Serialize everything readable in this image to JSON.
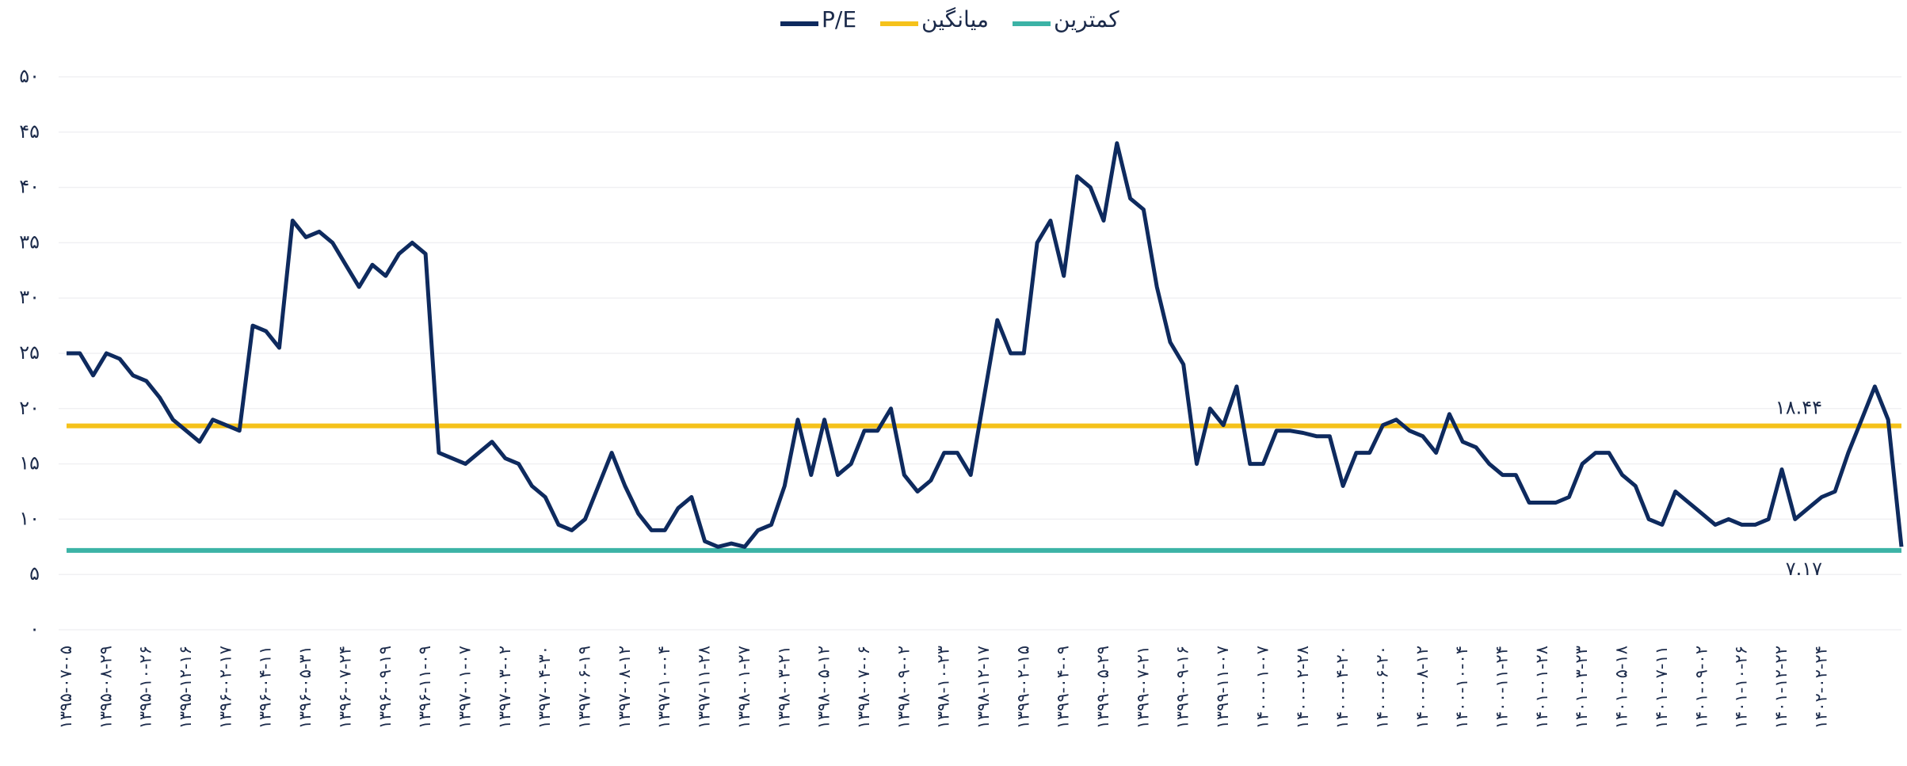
{
  "chart_data": {
    "type": "line",
    "series": [
      {
        "name": "P/E",
        "color": "#0e2a5e",
        "values": [
          25,
          25,
          23,
          25,
          24.5,
          23,
          22.5,
          21,
          19,
          18,
          17,
          19,
          18.5,
          18,
          27.5,
          27,
          25.5,
          37,
          35.5,
          36,
          35,
          33,
          31,
          33,
          32,
          34,
          35,
          34,
          16,
          15.5,
          15,
          16,
          17,
          15.5,
          15,
          13,
          12,
          9.5,
          9,
          10,
          13,
          16,
          13,
          10.5,
          9,
          9,
          11,
          12,
          8,
          7.5,
          7.8,
          7.5,
          9,
          9.5,
          13,
          19,
          14,
          19,
          14,
          15,
          18,
          18,
          20,
          14,
          12.5,
          13.5,
          16,
          16,
          14,
          21,
          28,
          25,
          25,
          35,
          37,
          32,
          41,
          40,
          37,
          44,
          39,
          38,
          31,
          26,
          24,
          15,
          20,
          18.5,
          22,
          15,
          15,
          18,
          18,
          17.8,
          17.5,
          17.5,
          13,
          16,
          16,
          18.5,
          19,
          18,
          17.5,
          16,
          19.5,
          17,
          16.5,
          15,
          14,
          14,
          11.5,
          11.5,
          11.5,
          12,
          15,
          16,
          16,
          14,
          13,
          10,
          9.5,
          12.5,
          11.5,
          10.5,
          9.5,
          10,
          9.5,
          9.5,
          10,
          14.5,
          10,
          11,
          12,
          12.5,
          16,
          19,
          22,
          19,
          7.5
        ]
      }
    ],
    "reference_lines": [
      {
        "name": "میانگین",
        "value": 18.44,
        "value_label": "۱۸.۴۴",
        "color": "#f5c21b"
      },
      {
        "name": "کمترین",
        "value": 7.17,
        "value_label": "۷.۱۷",
        "color": "#3cb3a6"
      }
    ],
    "categories": [
      "۱۳۹۵-۰۷-۰۵",
      null,
      null,
      "۱۳۹۵-۰۸-۲۹",
      null,
      null,
      "۱۳۹۵-۱۰-۲۶",
      null,
      null,
      "۱۳۹۵-۱۲-۱۶",
      null,
      null,
      "۱۳۹۶-۰۲-۱۷",
      null,
      null,
      "۱۳۹۶-۰۴-۱۱",
      null,
      null,
      "۱۳۹۶-۰۵-۳۱",
      null,
      null,
      "۱۳۹۶-۰۷-۲۴",
      null,
      null,
      "۱۳۹۶-۰۹-۱۹",
      null,
      null,
      "۱۳۹۶-۱۱-۰۹",
      null,
      null,
      "۱۳۹۷-۰۱-۰۷",
      null,
      null,
      "۱۳۹۷-۰۳-۰۲",
      null,
      null,
      "۱۳۹۷-۰۴-۳۰",
      null,
      null,
      "۱۳۹۷-۰۶-۱۹",
      null,
      null,
      "۱۳۹۷-۰۸-۱۲",
      null,
      null,
      "۱۳۹۷-۱۰-۰۴",
      null,
      null,
      "۱۳۹۷-۱۱-۲۸",
      null,
      null,
      "۱۳۹۸-۰۱-۲۷",
      null,
      null,
      "۱۳۹۸-۰۳-۲۱",
      null,
      null,
      "۱۳۹۸-۰۵-۱۲",
      null,
      null,
      "۱۳۹۸-۰۷-۰۶",
      null,
      null,
      "۱۳۹۸-۰۹-۰۲",
      null,
      null,
      "۱۳۹۸-۱۰-۲۳",
      null,
      null,
      "۱۳۹۸-۱۲-۱۷",
      null,
      null,
      "۱۳۹۹-۰۲-۱۵",
      null,
      null,
      "۱۳۹۹-۰۴-۰۹",
      null,
      null,
      "۱۳۹۹-۰۵-۲۹",
      null,
      null,
      "۱۳۹۹-۰۷-۲۱",
      null,
      null,
      "۱۳۹۹-۰۹-۱۶",
      null,
      null,
      "۱۳۹۹-۱۱-۰۷",
      null,
      null,
      "۱۴۰۰-۰۱-۰۷",
      null,
      null,
      "۱۴۰۰-۰۲-۲۸",
      null,
      null,
      "۱۴۰۰-۰۴-۲۰",
      null,
      null,
      "۱۴۰۰-۰۶-۲۰",
      null,
      null,
      "۱۴۰۰-۰۸-۱۲",
      null,
      null,
      "۱۴۰۰-۱۰-۰۴",
      null,
      null,
      "۱۴۰۰-۱۱-۲۴",
      null,
      null,
      "۱۴۰۱-۰۱-۲۸",
      null,
      null,
      "۱۴۰۱-۰۳-۲۳",
      null,
      null,
      "۱۴۰۱-۰۵-۱۸",
      null,
      null,
      "۱۴۰۱-۰۷-۱۱",
      null,
      null,
      "۱۴۰۱-۰۹-۰۲",
      null,
      null,
      "۱۴۰۱-۱۰-۲۶",
      null,
      null,
      "۱۴۰۱-۱۲-۲۲",
      null,
      null,
      "۱۴۰۲-۰۲-۲۴",
      null,
      null,
      null,
      null,
      null,
      null
    ],
    "ylim": [
      0,
      50
    ],
    "yticks": [
      {
        "value": 0,
        "label": "۰"
      },
      {
        "value": 5,
        "label": "۵"
      },
      {
        "value": 10,
        "label": "۱۰"
      },
      {
        "value": 15,
        "label": "۱۵"
      },
      {
        "value": 20,
        "label": "۲۰"
      },
      {
        "value": 25,
        "label": "۲۵"
      },
      {
        "value": 30,
        "label": "۳۰"
      },
      {
        "value": 35,
        "label": "۳۵"
      },
      {
        "value": 40,
        "label": "۴۰"
      },
      {
        "value": 45,
        "label": "۴۵"
      },
      {
        "value": 50,
        "label": "۵۰"
      }
    ],
    "grid": true
  }
}
